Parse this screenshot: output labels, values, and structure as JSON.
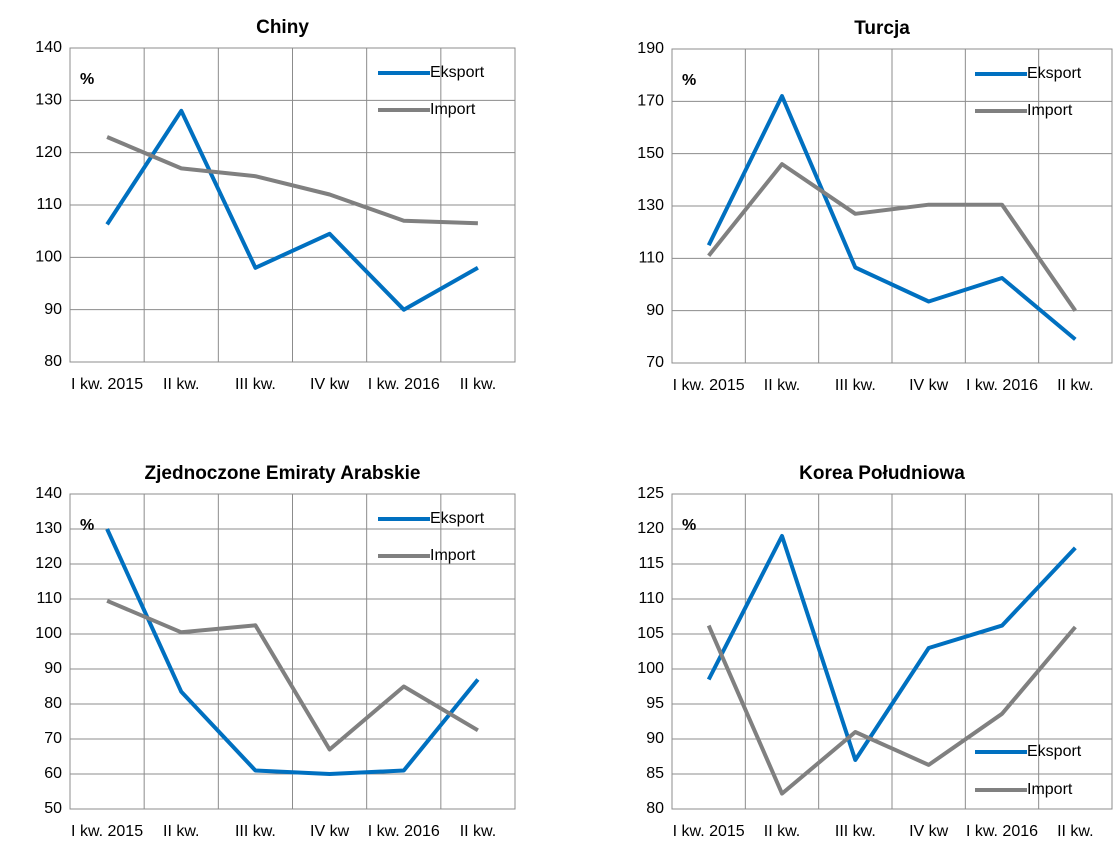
{
  "chart_data": [
    {
      "type": "line",
      "title": "Chiny",
      "ylabel": "%",
      "categories": [
        "I kw. 2015",
        "II kw.",
        "III kw.",
        "IV kw",
        "I kw. 2016",
        "II kw."
      ],
      "series": [
        {
          "name": "Eksport",
          "color": "#0070c0",
          "values": [
            106.3,
            128,
            98,
            104.5,
            90,
            98
          ]
        },
        {
          "name": "Import",
          "color": "#808080",
          "values": [
            123,
            117,
            115.5,
            112,
            107,
            106.5
          ]
        }
      ],
      "ylim": [
        80,
        140
      ],
      "yticks": [
        80,
        90,
        100,
        110,
        120,
        130,
        140
      ],
      "grid": true,
      "legend": "upper right"
    },
    {
      "type": "line",
      "title": "Turcja",
      "ylabel": "%",
      "categories": [
        "I kw. 2015",
        "II kw.",
        "III kw.",
        "IV kw",
        "I kw. 2016",
        "II kw."
      ],
      "series": [
        {
          "name": "Eksport",
          "color": "#0070c0",
          "values": [
            115,
            172,
            106.5,
            93.5,
            102.5,
            79
          ]
        },
        {
          "name": "Import",
          "color": "#808080",
          "values": [
            111,
            146,
            127,
            130.5,
            130.5,
            90
          ]
        }
      ],
      "ylim": [
        70,
        190
      ],
      "yticks": [
        70,
        90,
        110,
        130,
        150,
        170,
        190
      ],
      "grid": true,
      "legend": "upper right"
    },
    {
      "type": "line",
      "title": "Zjednoczone Emiraty Arabskie",
      "ylabel": "%",
      "categories": [
        "I kw. 2015",
        "II kw.",
        "III kw.",
        "IV kw",
        "I kw. 2016",
        "II kw."
      ],
      "series": [
        {
          "name": "Eksport",
          "color": "#0070c0",
          "values": [
            130,
            83.5,
            61,
            60,
            61,
            87
          ]
        },
        {
          "name": "Import",
          "color": "#808080",
          "values": [
            109.5,
            100.5,
            102.5,
            67,
            85,
            72.5
          ]
        }
      ],
      "ylim": [
        50,
        140
      ],
      "yticks": [
        50,
        60,
        70,
        80,
        90,
        100,
        110,
        120,
        130,
        140
      ],
      "grid": true,
      "legend": "upper right"
    },
    {
      "type": "line",
      "title": "Korea Południowa",
      "ylabel": "%",
      "categories": [
        "I kw. 2015",
        "II kw.",
        "III kw.",
        "IV kw",
        "I kw. 2016",
        "II kw."
      ],
      "series": [
        {
          "name": "Eksport",
          "color": "#0070c0",
          "values": [
            98.5,
            119,
            87,
            103,
            106.2,
            117.3
          ]
        },
        {
          "name": "Import",
          "color": "#808080",
          "values": [
            106.2,
            82.2,
            91,
            86.3,
            93.6,
            106
          ]
        }
      ],
      "ylim": [
        80,
        125
      ],
      "yticks": [
        80,
        85,
        90,
        95,
        100,
        105,
        110,
        115,
        120,
        125
      ],
      "grid": true,
      "legend": "lower right"
    }
  ]
}
